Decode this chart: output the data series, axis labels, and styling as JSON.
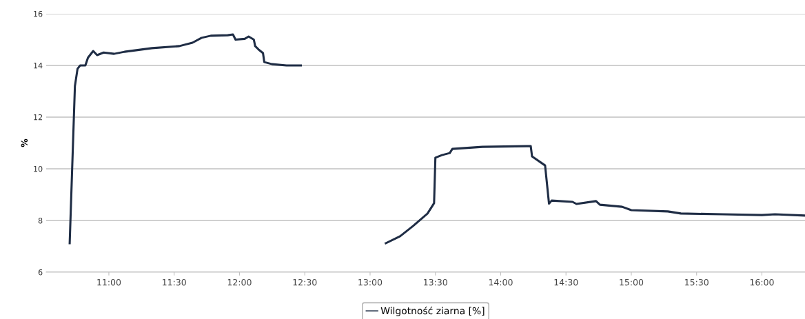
{
  "chart_data": {
    "type": "line",
    "ylabel": "%",
    "legend": "bottom",
    "grid": "y",
    "marker": "none",
    "line_style": "solid",
    "xlim": [
      10.52,
      16.33
    ],
    "ylim": [
      6,
      16
    ],
    "yticks": [
      6,
      8,
      10,
      12,
      14,
      16
    ],
    "xticks": [
      {
        "value": 11,
        "label": "11:00"
      },
      {
        "value": 11.5,
        "label": "11:30"
      },
      {
        "value": 12,
        "label": "12:00"
      },
      {
        "value": 12.5,
        "label": "12:30"
      },
      {
        "value": 13,
        "label": "13:00"
      },
      {
        "value": 13.5,
        "label": "13:30"
      },
      {
        "value": 14,
        "label": "14:00"
      },
      {
        "value": 14.5,
        "label": "14:30"
      },
      {
        "value": 15,
        "label": "15:00"
      },
      {
        "value": 15.5,
        "label": "15:30"
      },
      {
        "value": 16,
        "label": "16:00"
      }
    ],
    "x": [
      10.7,
      10.74,
      10.76,
      10.78,
      10.82,
      10.84,
      10.88,
      10.91,
      10.96,
      11.04,
      11.12,
      11.33,
      11.54,
      11.64,
      11.71,
      11.78,
      11.91,
      11.95,
      11.97,
      12.04,
      12.07,
      12.11,
      12.12,
      12.15,
      12.18,
      12.19,
      12.25,
      12.36,
      12.47,
      12.8,
      13.12,
      13.23,
      13.33,
      13.44,
      13.49,
      13.5,
      13.55,
      13.61,
      13.63,
      13.86,
      14.23,
      14.24,
      14.34,
      14.37,
      14.39,
      14.55,
      14.58,
      14.73,
      14.76,
      14.93,
      15.0,
      15.28,
      15.38,
      15.7,
      16.0,
      16.1,
      16.33
    ],
    "series": [
      {
        "name": "Wilgotność ziarna [%]",
        "color": "#1f2d45",
        "values": [
          7.12,
          13.2,
          13.87,
          14.0,
          14.0,
          14.3,
          14.56,
          14.4,
          14.5,
          14.45,
          14.53,
          14.67,
          14.75,
          14.88,
          15.07,
          15.15,
          15.17,
          15.2,
          15.0,
          15.03,
          15.12,
          15.0,
          14.75,
          14.6,
          14.48,
          14.13,
          14.05,
          14.0,
          14.0,
          null,
          7.12,
          7.39,
          7.79,
          8.27,
          8.67,
          10.43,
          10.53,
          10.61,
          10.77,
          10.85,
          10.88,
          10.48,
          10.13,
          8.65,
          8.77,
          8.72,
          8.64,
          8.75,
          8.61,
          8.53,
          8.4,
          8.35,
          8.27,
          8.24,
          8.21,
          8.24,
          8.19
        ]
      }
    ]
  }
}
